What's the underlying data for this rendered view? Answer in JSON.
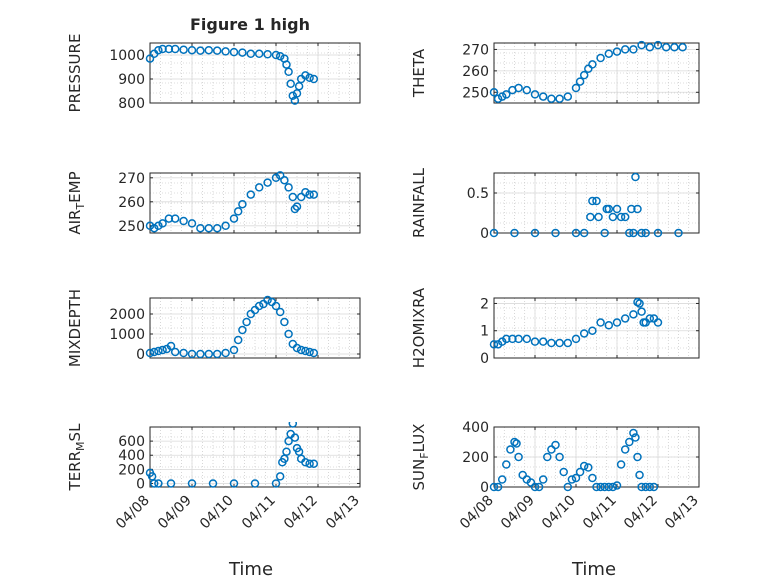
{
  "figure": {
    "title": "Figure 1 high",
    "xlabel": "Time",
    "x_ticks": [
      "04/08",
      "04/09",
      "04/10",
      "04/11",
      "04/12",
      "04/13"
    ]
  },
  "colors": {
    "marker": "#0072BD",
    "grid": "#bdbdbd",
    "axis": "#262626"
  },
  "chart_data": [
    {
      "type": "scatter",
      "ylabel": "PRESSURE",
      "title": "Figure 1 high",
      "xlim": [
        0,
        5
      ],
      "ylim": [
        800,
        1050
      ],
      "yticks": [
        800,
        900,
        1000
      ],
      "ytick_labels": [
        "800",
        "900",
        "1000"
      ],
      "x": [
        0,
        0.1,
        0.2,
        0.3,
        0.45,
        0.6,
        0.8,
        1.0,
        1.2,
        1.4,
        1.6,
        1.8,
        2.0,
        2.2,
        2.4,
        2.6,
        2.8,
        3.0,
        3.1,
        3.2,
        3.25,
        3.3,
        3.35,
        3.4,
        3.45,
        3.5,
        3.55,
        3.6,
        3.7,
        3.8,
        3.9
      ],
      "y": [
        985,
        1005,
        1020,
        1025,
        1025,
        1025,
        1022,
        1020,
        1018,
        1020,
        1018,
        1015,
        1012,
        1010,
        1005,
        1005,
        1003,
        1000,
        995,
        985,
        960,
        930,
        880,
        830,
        810,
        840,
        870,
        900,
        915,
        905,
        900
      ]
    },
    {
      "type": "scatter",
      "ylabel": "THETA",
      "xlim": [
        0,
        5
      ],
      "ylim": [
        245,
        273
      ],
      "yticks": [
        250,
        260,
        270
      ],
      "ytick_labels": [
        "250",
        "260",
        "270"
      ],
      "x": [
        0,
        0.1,
        0.2,
        0.3,
        0.45,
        0.6,
        0.8,
        1.0,
        1.2,
        1.4,
        1.6,
        1.8,
        2.0,
        2.1,
        2.2,
        2.3,
        2.4,
        2.6,
        2.8,
        3.0,
        3.2,
        3.4,
        3.6,
        3.8,
        4.0,
        4.2,
        4.4,
        4.6
      ],
      "y": [
        250,
        247,
        248,
        249,
        251,
        252,
        251,
        249,
        248,
        247,
        247,
        248,
        252,
        255,
        258,
        261,
        263,
        266,
        268,
        269,
        270,
        270,
        272,
        271,
        272,
        271,
        271,
        271
      ]
    },
    {
      "type": "scatter",
      "ylabel": "AIR_TEMP",
      "xlim": [
        0,
        5
      ],
      "ylim": [
        247,
        272
      ],
      "yticks": [
        250,
        260,
        270
      ],
      "ytick_labels": [
        "250",
        "260",
        "270"
      ],
      "x": [
        0,
        0.1,
        0.2,
        0.3,
        0.45,
        0.6,
        0.8,
        1.0,
        1.2,
        1.4,
        1.6,
        1.8,
        2.0,
        2.1,
        2.2,
        2.4,
        2.6,
        2.8,
        3.0,
        3.1,
        3.2,
        3.3,
        3.4,
        3.45,
        3.5,
        3.6,
        3.7,
        3.8,
        3.9
      ],
      "y": [
        250,
        249,
        250,
        251,
        253,
        253,
        252,
        251,
        249,
        249,
        249,
        250,
        253,
        256,
        259,
        263,
        266,
        268,
        270,
        271,
        269,
        266,
        262,
        257,
        258,
        262,
        264,
        263,
        263
      ]
    },
    {
      "type": "scatter",
      "ylabel": "RAINFALL",
      "xlim": [
        0,
        5
      ],
      "ylim": [
        0,
        0.75
      ],
      "yticks": [
        0,
        0.5
      ],
      "ytick_labels": [
        "0",
        "0.5"
      ],
      "x": [
        0,
        0.5,
        1.0,
        1.5,
        2.0,
        2.2,
        2.35,
        2.4,
        2.5,
        2.55,
        2.7,
        2.75,
        2.8,
        2.9,
        3.0,
        3.1,
        3.2,
        3.3,
        3.35,
        3.4,
        3.45,
        3.5,
        3.6,
        3.7,
        4.0,
        4.5
      ],
      "y": [
        0,
        0,
        0,
        0,
        0,
        0,
        0.2,
        0.4,
        0.4,
        0.2,
        0,
        0.3,
        0.3,
        0.2,
        0.3,
        0.2,
        0.2,
        0,
        0.3,
        0,
        0.7,
        0.3,
        0,
        0,
        0,
        0
      ]
    },
    {
      "type": "scatter",
      "ylabel": "MIXDEPTH",
      "xlim": [
        0,
        5
      ],
      "ylim": [
        -200,
        2800
      ],
      "yticks": [
        0,
        1000,
        2000
      ],
      "ytick_labels": [
        "0",
        "1000",
        "2000"
      ],
      "x": [
        0,
        0.1,
        0.2,
        0.3,
        0.4,
        0.5,
        0.6,
        0.8,
        1.0,
        1.2,
        1.4,
        1.6,
        1.8,
        2.0,
        2.1,
        2.2,
        2.3,
        2.4,
        2.5,
        2.6,
        2.7,
        2.8,
        2.9,
        3.0,
        3.1,
        3.2,
        3.3,
        3.4,
        3.5,
        3.6,
        3.7,
        3.8,
        3.9
      ],
      "y": [
        50,
        100,
        150,
        200,
        250,
        400,
        100,
        50,
        0,
        0,
        0,
        0,
        50,
        200,
        700,
        1200,
        1600,
        2000,
        2200,
        2400,
        2500,
        2700,
        2600,
        2400,
        2100,
        1600,
        1000,
        500,
        300,
        200,
        150,
        100,
        50
      ]
    },
    {
      "type": "scatter",
      "ylabel": "H2OMIXRA",
      "xlim": [
        0,
        5
      ],
      "ylim": [
        0,
        2.2
      ],
      "yticks": [
        0,
        1,
        2
      ],
      "ytick_labels": [
        "0",
        "1",
        "2"
      ],
      "x": [
        0,
        0.1,
        0.2,
        0.3,
        0.45,
        0.6,
        0.8,
        1.0,
        1.2,
        1.4,
        1.6,
        1.8,
        2.0,
        2.2,
        2.4,
        2.6,
        2.8,
        3.0,
        3.2,
        3.4,
        3.5,
        3.55,
        3.6,
        3.65,
        3.7,
        3.8,
        3.9,
        4.0
      ],
      "y": [
        0.5,
        0.5,
        0.6,
        0.7,
        0.7,
        0.7,
        0.7,
        0.6,
        0.6,
        0.55,
        0.55,
        0.55,
        0.7,
        0.9,
        1.0,
        1.3,
        1.2,
        1.3,
        1.45,
        1.6,
        2.05,
        2.0,
        1.7,
        1.3,
        1.3,
        1.45,
        1.45,
        1.3
      ]
    },
    {
      "type": "scatter",
      "ylabel": "TERR_MSL",
      "xlim": [
        0,
        5
      ],
      "ylim": [
        -50,
        800
      ],
      "yticks": [
        0,
        200,
        400,
        600
      ],
      "ytick_labels": [
        "0",
        "200",
        "400",
        "600"
      ],
      "x": [
        0,
        0.05,
        0.1,
        0.2,
        0.5,
        1.0,
        1.5,
        2.0,
        2.5,
        3.0,
        3.1,
        3.15,
        3.2,
        3.25,
        3.3,
        3.35,
        3.4,
        3.45,
        3.5,
        3.55,
        3.6,
        3.7,
        3.8,
        3.9
      ],
      "y": [
        150,
        100,
        0,
        0,
        0,
        0,
        0,
        0,
        0,
        0,
        100,
        300,
        350,
        450,
        600,
        700,
        850,
        650,
        500,
        450,
        350,
        300,
        280,
        280
      ]
    },
    {
      "type": "scatter",
      "ylabel": "SUN_FLUX",
      "xlim": [
        0,
        5
      ],
      "ylim": [
        0,
        400
      ],
      "yticks": [
        0,
        200,
        400
      ],
      "ytick_labels": [
        "0",
        "200",
        "400"
      ],
      "x": [
        0,
        0.1,
        0.2,
        0.3,
        0.4,
        0.5,
        0.55,
        0.6,
        0.7,
        0.8,
        0.9,
        1.0,
        1.1,
        1.2,
        1.3,
        1.4,
        1.5,
        1.6,
        1.7,
        1.8,
        1.9,
        2.0,
        2.1,
        2.2,
        2.3,
        2.4,
        2.5,
        2.6,
        2.7,
        2.8,
        2.9,
        3.0,
        3.1,
        3.2,
        3.3,
        3.4,
        3.45,
        3.5,
        3.55,
        3.6,
        3.7,
        3.8,
        3.9
      ],
      "y": [
        0,
        0,
        50,
        150,
        250,
        300,
        290,
        200,
        80,
        50,
        30,
        0,
        0,
        50,
        200,
        250,
        280,
        200,
        100,
        0,
        50,
        60,
        100,
        140,
        130,
        60,
        0,
        0,
        0,
        0,
        0,
        10,
        150,
        250,
        300,
        360,
        330,
        200,
        80,
        0,
        0,
        0,
        0
      ]
    }
  ]
}
